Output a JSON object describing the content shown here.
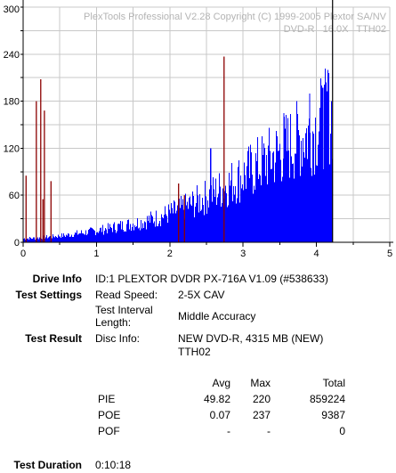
{
  "chart_data": {
    "type": "bar",
    "watermark_line1": "PlexTools Professional V2.28 Copyright (C) 1999-2005 Plextor SA/NV",
    "watermark_line2": "DVD-R   16.0X   TTH02",
    "y_ticks": [
      "0",
      "60",
      "120",
      "180",
      "240",
      "300"
    ],
    "x_ticks": [
      "0",
      "1",
      "2",
      "3",
      "4",
      "5"
    ],
    "ylim": [
      0,
      300
    ],
    "xlim": [
      0,
      5
    ],
    "disc_end_gb": 4.22,
    "colors": {
      "pie": "#0000ff",
      "poe": "#8b0000",
      "grid": "#c8c8c8",
      "marker": "#000000"
    },
    "pie_envelope": [
      [
        0.0,
        5
      ],
      [
        0.2,
        6
      ],
      [
        0.4,
        8
      ],
      [
        0.6,
        10
      ],
      [
        0.8,
        13
      ],
      [
        1.0,
        16
      ],
      [
        1.2,
        20
      ],
      [
        1.4,
        24
      ],
      [
        1.6,
        28
      ],
      [
        1.8,
        33
      ],
      [
        2.0,
        40
      ],
      [
        2.2,
        48
      ],
      [
        2.4,
        58
      ],
      [
        2.6,
        68
      ],
      [
        2.8,
        80
      ],
      [
        3.0,
        92
      ],
      [
        3.2,
        106
      ],
      [
        3.4,
        118
      ],
      [
        3.6,
        132
      ],
      [
        3.8,
        145
      ],
      [
        4.0,
        158
      ],
      [
        4.1,
        170
      ],
      [
        4.2,
        178
      ]
    ],
    "pie_peaks": [
      [
        2.55,
        120
      ],
      [
        3.55,
        165
      ],
      [
        3.9,
        190
      ],
      [
        4.08,
        197
      ],
      [
        4.15,
        220
      ]
    ],
    "poe_spikes": [
      [
        0.04,
        85
      ],
      [
        0.18,
        180
      ],
      [
        0.24,
        208
      ],
      [
        0.29,
        168
      ],
      [
        0.27,
        55
      ],
      [
        0.38,
        78
      ],
      [
        2.12,
        75
      ],
      [
        2.2,
        60
      ],
      [
        2.74,
        237
      ]
    ]
  },
  "drive_info": {
    "label": "Drive Info",
    "value": "ID:1 PLEXTOR DVDR PX-716A V1.09 (#538633)"
  },
  "test_settings": {
    "label": "Test Settings",
    "read_speed_label": "Read Speed:",
    "read_speed_value": "2-5X CAV",
    "interval_label_line1": "Test Interval",
    "interval_label_line2": "Length:",
    "interval_value": "Middle Accuracy"
  },
  "test_result": {
    "label": "Test Result",
    "disc_info_label": "Disc Info:",
    "disc_info_line1": "NEW DVD-R, 4315 MB (NEW)",
    "disc_info_line2": "TTH02"
  },
  "stats": {
    "headers": [
      "Avg",
      "Max",
      "Total"
    ],
    "rows": [
      {
        "name": "PIE",
        "avg": "49.82",
        "max": "220",
        "total": "859224"
      },
      {
        "name": "POE",
        "avg": "0.07",
        "max": "237",
        "total": "9387"
      },
      {
        "name": "POF",
        "avg": "-",
        "max": "-",
        "total": "0"
      }
    ]
  },
  "test_duration": {
    "label": "Test Duration",
    "value": "0:10:18"
  }
}
